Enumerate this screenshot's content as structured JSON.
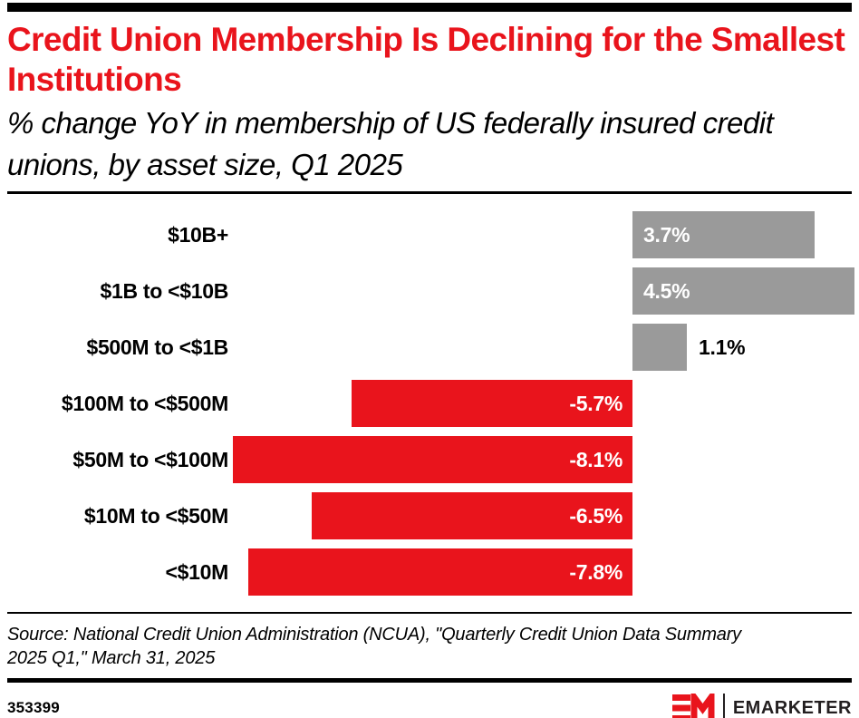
{
  "page": {
    "title": "Credit Union Membership Is Declining for the Smallest Institutions",
    "subtitle": "% change YoY in membership of US federally insured credit unions, by asset size, Q1 2025",
    "source": "Source: National Credit Union Administration (NCUA), \"Quarterly Credit Union Data Summary 2025 Q1,\" March 31, 2025",
    "chart_id": "353399",
    "brand": {
      "logo_mark": "EM",
      "logo_text": "EMARKETER"
    }
  },
  "colors": {
    "accent_red": "#E9141C",
    "positive_bar": "#9A9A9A",
    "negative_bar": "#E9141C",
    "value_label_inside": "#FFFFFF",
    "value_label_outside": "#000000",
    "rule_black": "#000000",
    "wordmark_dark": "#231F20"
  },
  "chart_data": {
    "type": "bar",
    "orientation": "horizontal",
    "title": "Credit Union Membership Is Declining for the Smallest Institutions",
    "subtitle": "% change YoY in membership of US federally insured credit unions, by asset size, Q1 2025",
    "xlabel": "",
    "ylabel": "",
    "unit": "%",
    "xlim": [
      -8.5,
      4.6
    ],
    "grid": false,
    "legend": false,
    "categories": [
      "$10B+",
      "$1B to <$10B",
      "$500M to <$1B",
      "$100M to <$500M",
      "$50M to <$100M",
      "$10M to <$50M",
      "<$10M"
    ],
    "values": [
      3.7,
      4.5,
      1.1,
      -5.7,
      -8.1,
      -6.5,
      -7.8
    ],
    "value_labels": [
      "3.7%",
      "4.5%",
      "1.1%",
      "-5.7%",
      "-8.1%",
      "-6.5%",
      "-7.8%"
    ]
  }
}
